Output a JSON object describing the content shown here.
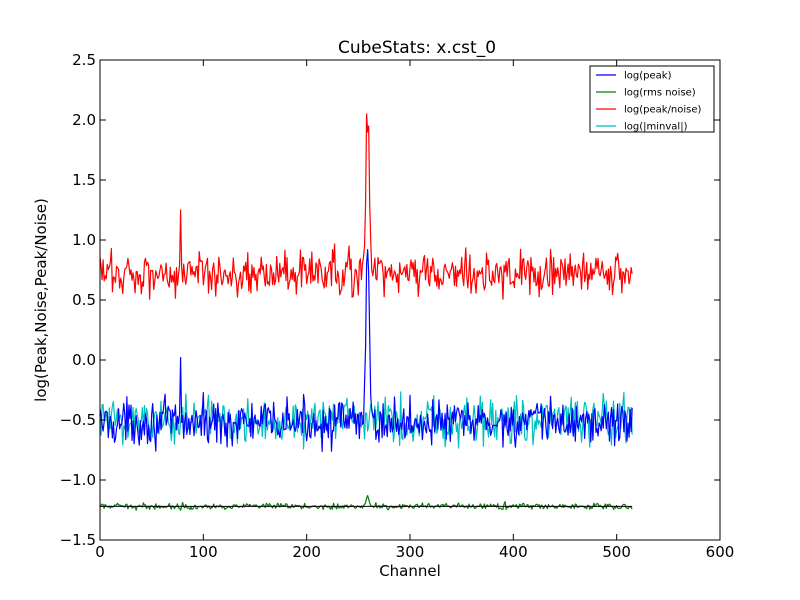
{
  "chart_data": {
    "type": "line",
    "title": "CubeStats: x.cst_0",
    "xlabel": "Channel",
    "ylabel": "log(Peak,Noise,Peak/Noise)",
    "xlim": [
      0,
      600
    ],
    "ylim": [
      -1.5,
      2.5
    ],
    "x_ticks": [
      0,
      100,
      200,
      300,
      400,
      500,
      600
    ],
    "y_ticks": [
      -1.5,
      -1.0,
      -0.5,
      0.0,
      0.5,
      1.0,
      1.5,
      2.0,
      2.5
    ],
    "x_tick_labels": [
      "0",
      "100",
      "200",
      "300",
      "400",
      "500",
      "600"
    ],
    "y_tick_labels": [
      "−1.5",
      "−1.0",
      "−0.5",
      "0.0",
      "0.5",
      "1.0",
      "1.5",
      "2.0",
      "2.5"
    ],
    "legend_position": "top-right",
    "grid": false,
    "n_channels": 516,
    "series": [
      {
        "name": "log(peak)",
        "color": "#0000ff",
        "baseline": -0.52,
        "amplitude": 0.09,
        "features": [
          {
            "x": 78,
            "y": 0.02
          },
          {
            "x": 256,
            "y": -0.2
          },
          {
            "x": 257,
            "y": 0.1
          },
          {
            "x": 258,
            "y": 0.8
          },
          {
            "x": 259,
            "y": 0.92
          },
          {
            "x": 260,
            "y": 0.72
          },
          {
            "x": 261,
            "y": 0.2
          },
          {
            "x": 262,
            "y": -0.3
          }
        ]
      },
      {
        "name": "log(rms noise)",
        "color": "#008000",
        "baseline": -1.22,
        "amplitude": 0.012,
        "features": [
          {
            "x": 257,
            "y": -1.19
          },
          {
            "x": 258,
            "y": -1.15
          },
          {
            "x": 259,
            "y": -1.13
          },
          {
            "x": 260,
            "y": -1.16
          },
          {
            "x": 261,
            "y": -1.19
          },
          {
            "x": 392,
            "y": -1.18
          }
        ]
      },
      {
        "name": "log(peak/noise)",
        "color": "#ff0000",
        "baseline": 0.72,
        "amplitude": 0.09,
        "features": [
          {
            "x": 78,
            "y": 1.25
          },
          {
            "x": 256,
            "y": 0.95
          },
          {
            "x": 257,
            "y": 1.3
          },
          {
            "x": 258,
            "y": 2.05
          },
          {
            "x": 259,
            "y": 1.9
          },
          {
            "x": 260,
            "y": 1.95
          },
          {
            "x": 261,
            "y": 1.3
          },
          {
            "x": 262,
            "y": 1.0
          }
        ]
      },
      {
        "name": "log(|minval|)",
        "color": "#00bfbf",
        "baseline": -0.5,
        "amplitude": 0.1,
        "features": []
      }
    ]
  }
}
